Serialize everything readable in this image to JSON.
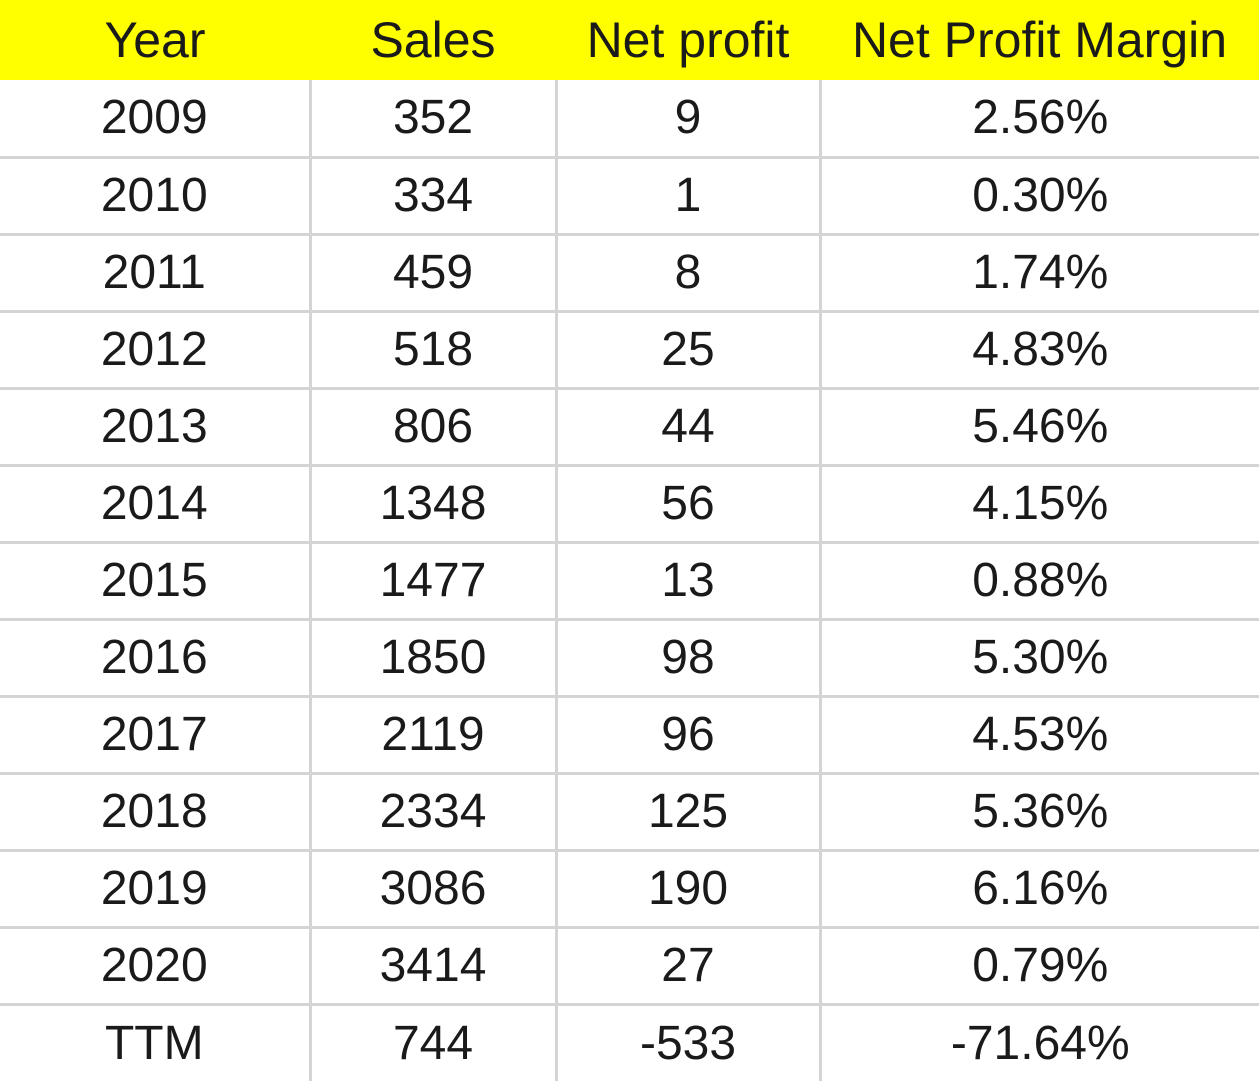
{
  "table": {
    "headers": {
      "year": "Year",
      "sales": "Sales",
      "net_profit": "Net profit",
      "net_profit_margin": "Net Profit Margin"
    },
    "rows": [
      {
        "year": "2009",
        "sales": "352",
        "net_profit": "9",
        "margin": "2.56%"
      },
      {
        "year": "2010",
        "sales": "334",
        "net_profit": "1",
        "margin": "0.30%"
      },
      {
        "year": "2011",
        "sales": "459",
        "net_profit": "8",
        "margin": "1.74%"
      },
      {
        "year": "2012",
        "sales": "518",
        "net_profit": "25",
        "margin": "4.83%"
      },
      {
        "year": "2013",
        "sales": "806",
        "net_profit": "44",
        "margin": "5.46%"
      },
      {
        "year": "2014",
        "sales": "1348",
        "net_profit": "56",
        "margin": "4.15%"
      },
      {
        "year": "2015",
        "sales": "1477",
        "net_profit": "13",
        "margin": "0.88%"
      },
      {
        "year": "2016",
        "sales": "1850",
        "net_profit": "98",
        "margin": "5.30%"
      },
      {
        "year": "2017",
        "sales": "2119",
        "net_profit": "96",
        "margin": "4.53%"
      },
      {
        "year": "2018",
        "sales": "2334",
        "net_profit": "125",
        "margin": "5.36%"
      },
      {
        "year": "2019",
        "sales": "3086",
        "net_profit": "190",
        "margin": "6.16%"
      },
      {
        "year": "2020",
        "sales": "3414",
        "net_profit": "27",
        "margin": "0.79%"
      },
      {
        "year": "TTM",
        "sales": "744",
        "net_profit": "-533",
        "margin": "-71.64%"
      }
    ]
  },
  "colors": {
    "header_fill": "#ffff00",
    "gridline": "#d4d4d4",
    "text": "#1a1a1a"
  }
}
